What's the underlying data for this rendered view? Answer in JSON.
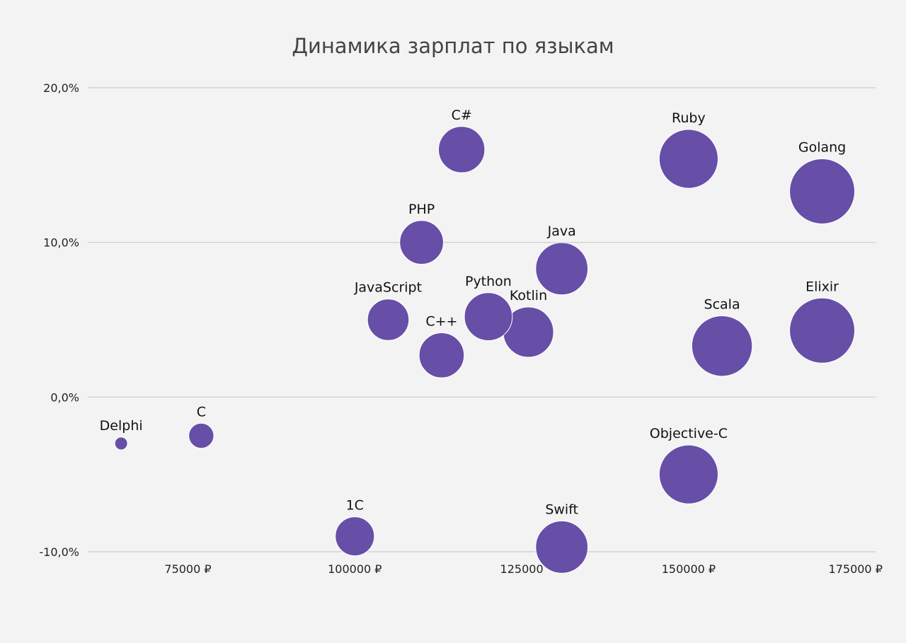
{
  "chart_data": {
    "type": "bubble",
    "title": "Динамика зарплат по языкам",
    "xlabel": "",
    "ylabel": "",
    "xlim": [
      60000,
      178000
    ],
    "ylim": [
      -10,
      20
    ],
    "grid": true,
    "legend": "none",
    "color": "#674ea7",
    "x_ticks": [
      {
        "value": 75000,
        "label": "75000 ₽"
      },
      {
        "value": 100000,
        "label": "100000 ₽"
      },
      {
        "value": 125000,
        "label": "125000"
      },
      {
        "value": 150000,
        "label": "150000 ₽"
      },
      {
        "value": 175000,
        "label": "175000 ₽"
      }
    ],
    "y_ticks": [
      {
        "value": 20,
        "label": "20,0%"
      },
      {
        "value": 10,
        "label": "10,0%"
      },
      {
        "value": 0,
        "label": "0,0%"
      },
      {
        "value": -10,
        "label": "-10,0%"
      }
    ],
    "points": [
      {
        "label": "Delphi",
        "x": 65000,
        "y": -3.0,
        "size": 65000
      },
      {
        "label": "C",
        "x": 77000,
        "y": -2.5,
        "size": 77000
      },
      {
        "label": "1C",
        "x": 100000,
        "y": -9.0,
        "size": 100000
      },
      {
        "label": "JavaScript",
        "x": 105000,
        "y": 5.0,
        "size": 105000
      },
      {
        "label": "PHP",
        "x": 110000,
        "y": 10.0,
        "size": 110000
      },
      {
        "label": "C++",
        "x": 113000,
        "y": 2.7,
        "size": 113000
      },
      {
        "label": "C#",
        "x": 116000,
        "y": 16.0,
        "size": 116000
      },
      {
        "label": "Python",
        "x": 120000,
        "y": 5.2,
        "size": 120000
      },
      {
        "label": "Kotlin",
        "x": 126000,
        "y": 4.2,
        "size": 126000
      },
      {
        "label": "Java",
        "x": 131000,
        "y": 8.3,
        "size": 131000
      },
      {
        "label": "Swift",
        "x": 131000,
        "y": -9.7,
        "size": 131000
      },
      {
        "label": "Ruby",
        "x": 150000,
        "y": 15.4,
        "size": 150000
      },
      {
        "label": "Objective-C",
        "x": 150000,
        "y": -5.0,
        "size": 150000
      },
      {
        "label": "Scala",
        "x": 155000,
        "y": 3.3,
        "size": 155000
      },
      {
        "label": "Golang",
        "x": 170000,
        "y": 13.3,
        "size": 170000
      },
      {
        "label": "Elixir",
        "x": 170000,
        "y": 4.3,
        "size": 170000
      }
    ]
  }
}
